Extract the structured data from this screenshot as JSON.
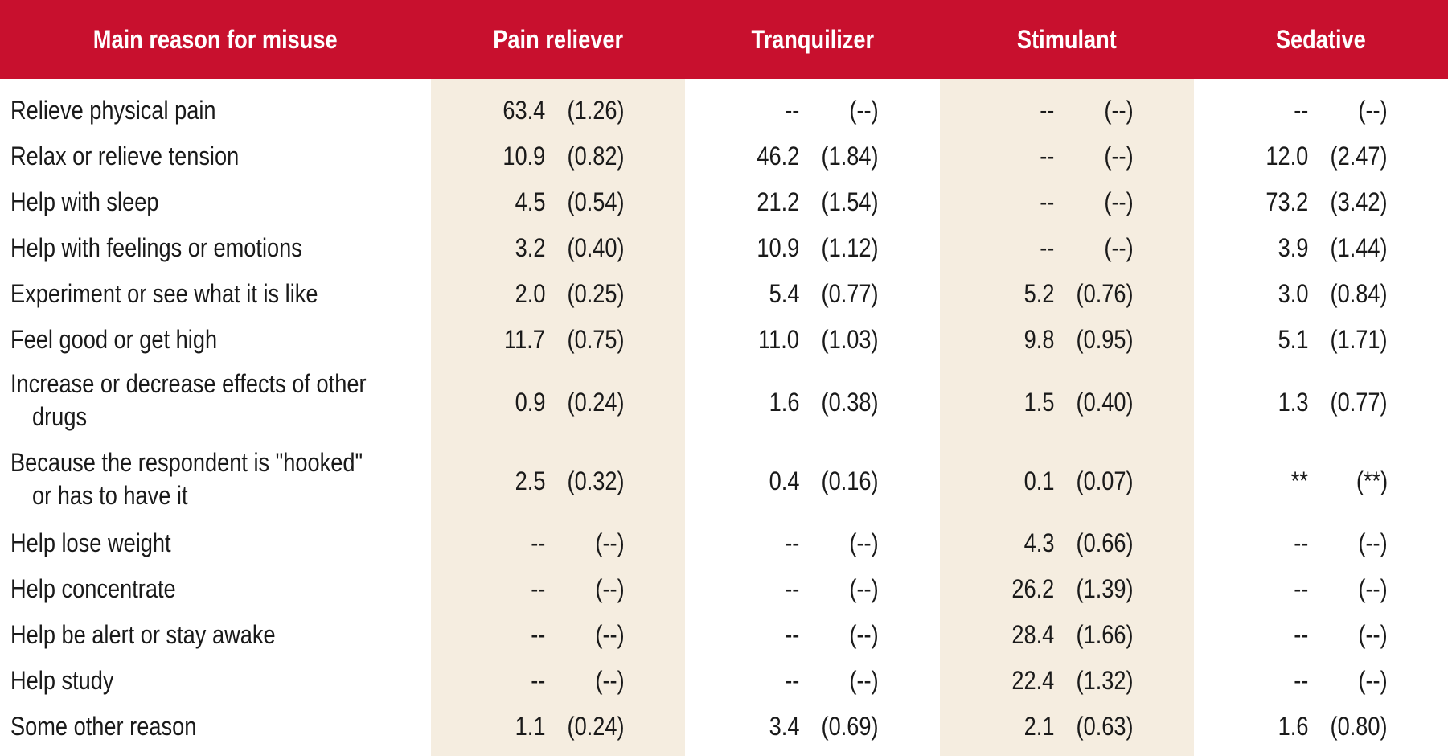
{
  "table": {
    "headers": [
      "Main reason for misuse",
      "Pain reliever",
      "Tranquilizer",
      "Stimulant",
      "Sedative"
    ],
    "rows": [
      {
        "label": [
          "Relieve physical pain"
        ],
        "cells": [
          [
            "63.4",
            "(1.26)"
          ],
          [
            "--",
            "(--)"
          ],
          [
            "--",
            "(--)"
          ],
          [
            "--",
            "(--)"
          ]
        ]
      },
      {
        "label": [
          "Relax or relieve tension"
        ],
        "cells": [
          [
            "10.9",
            "(0.82)"
          ],
          [
            "46.2",
            "(1.84)"
          ],
          [
            "--",
            "(--)"
          ],
          [
            "12.0",
            "(2.47)"
          ]
        ]
      },
      {
        "label": [
          "Help with sleep"
        ],
        "cells": [
          [
            "4.5",
            "(0.54)"
          ],
          [
            "21.2",
            "(1.54)"
          ],
          [
            "--",
            "(--)"
          ],
          [
            "73.2",
            "(3.42)"
          ]
        ]
      },
      {
        "label": [
          "Help with feelings or emotions"
        ],
        "cells": [
          [
            "3.2",
            "(0.40)"
          ],
          [
            "10.9",
            "(1.12)"
          ],
          [
            "--",
            "(--)"
          ],
          [
            "3.9",
            "(1.44)"
          ]
        ]
      },
      {
        "label": [
          "Experiment or see what it is like"
        ],
        "cells": [
          [
            "2.0",
            "(0.25)"
          ],
          [
            "5.4",
            "(0.77)"
          ],
          [
            "5.2",
            "(0.76)"
          ],
          [
            "3.0",
            "(0.84)"
          ]
        ]
      },
      {
        "label": [
          "Feel good or get high"
        ],
        "cells": [
          [
            "11.7",
            "(0.75)"
          ],
          [
            "11.0",
            "(1.03)"
          ],
          [
            "9.8",
            "(0.95)"
          ],
          [
            "5.1",
            "(1.71)"
          ]
        ]
      },
      {
        "label": [
          "Increase or decrease effects of other",
          "drugs"
        ],
        "cells": [
          [
            "0.9",
            "(0.24)"
          ],
          [
            "1.6",
            "(0.38)"
          ],
          [
            "1.5",
            "(0.40)"
          ],
          [
            "1.3",
            "(0.77)"
          ]
        ]
      },
      {
        "label": [
          "Because the respondent is \"hooked\"",
          "or has to have it"
        ],
        "cells": [
          [
            "2.5",
            "(0.32)"
          ],
          [
            "0.4",
            "(0.16)"
          ],
          [
            "0.1",
            "(0.07)"
          ],
          [
            "**",
            "(**)"
          ]
        ]
      },
      {
        "label": [
          "Help lose weight"
        ],
        "cells": [
          [
            "--",
            "(--)"
          ],
          [
            "--",
            "(--)"
          ],
          [
            "4.3",
            "(0.66)"
          ],
          [
            "--",
            "(--)"
          ]
        ]
      },
      {
        "label": [
          "Help concentrate"
        ],
        "cells": [
          [
            "--",
            "(--)"
          ],
          [
            "--",
            "(--)"
          ],
          [
            "26.2",
            "(1.39)"
          ],
          [
            "--",
            "(--)"
          ]
        ]
      },
      {
        "label": [
          "Help be alert or stay awake"
        ],
        "cells": [
          [
            "--",
            "(--)"
          ],
          [
            "--",
            "(--)"
          ],
          [
            "28.4",
            "(1.66)"
          ],
          [
            "--",
            "(--)"
          ]
        ]
      },
      {
        "label": [
          "Help study"
        ],
        "cells": [
          [
            "--",
            "(--)"
          ],
          [
            "--",
            "(--)"
          ],
          [
            "22.4",
            "(1.32)"
          ],
          [
            "--",
            "(--)"
          ]
        ]
      },
      {
        "label": [
          "Some other reason"
        ],
        "cells": [
          [
            "1.1",
            "(0.24)"
          ],
          [
            "3.4",
            "(0.69)"
          ],
          [
            "2.1",
            "(0.63)"
          ],
          [
            "1.6",
            "(0.80)"
          ]
        ]
      }
    ]
  }
}
